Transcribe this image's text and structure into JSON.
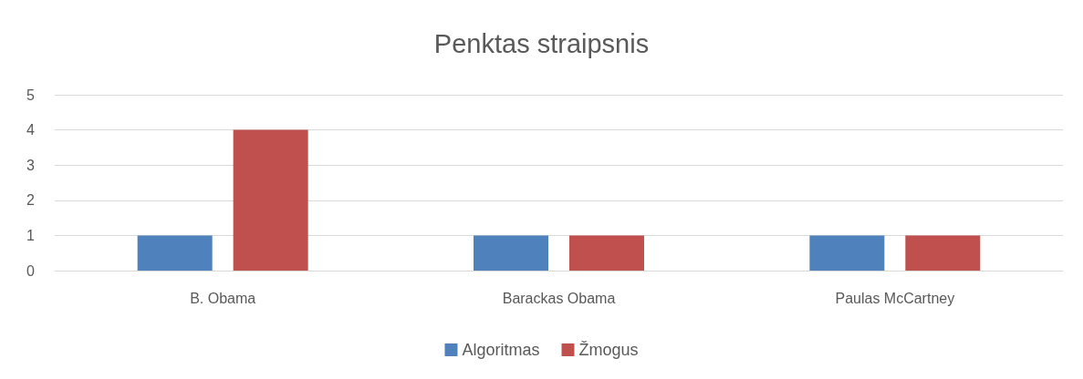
{
  "chart_data": {
    "type": "bar",
    "title": "Penktas straipsnis",
    "categories": [
      "B. Obama",
      "Barackas Obama",
      "Paulas McCartney"
    ],
    "series": [
      {
        "name": "Algoritmas",
        "color": "#4f81bd",
        "values": [
          1,
          1,
          1
        ]
      },
      {
        "name": "Žmogus",
        "color": "#c0504d",
        "values": [
          4,
          1,
          1
        ]
      }
    ],
    "ylim": [
      0,
      5
    ],
    "yticks": [
      0,
      1,
      2,
      3,
      4,
      5
    ],
    "grid": "y",
    "legend": "bottom"
  }
}
